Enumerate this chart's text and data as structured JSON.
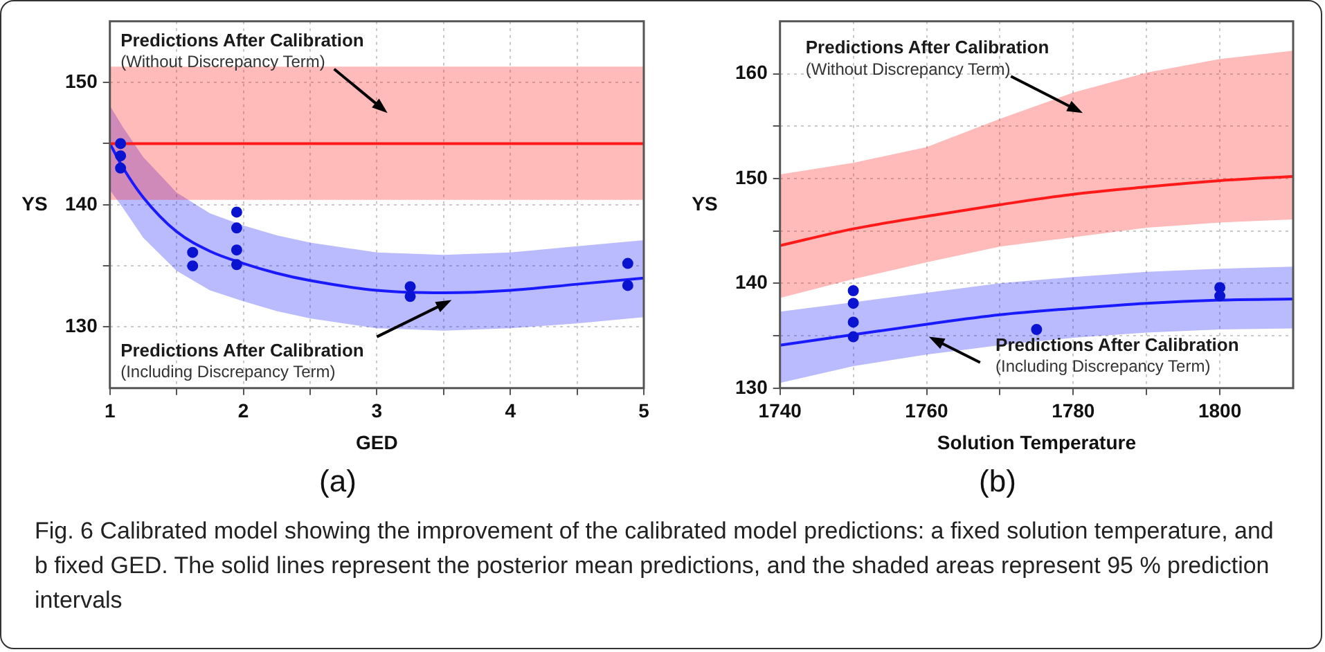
{
  "chart_data": [
    {
      "type": "line",
      "xlabel": "GED",
      "ylabel": "YS",
      "xlim": [
        1,
        5
      ],
      "ylim": [
        125,
        155
      ],
      "xticks": [
        1,
        {
          "value": 1.5,
          "label": null
        },
        2,
        {
          "value": 2.5,
          "label": null
        },
        3,
        {
          "value": 3.5,
          "label": null
        },
        4,
        {
          "value": 4.5,
          "label": null
        },
        5
      ],
      "yticks": [
        130,
        {
          "value": 135,
          "label": null
        },
        140,
        {
          "value": 145,
          "label": null
        },
        150
      ],
      "grid": true,
      "legend": false,
      "series": [
        {
          "type": "line",
          "color": "#ff1a1a",
          "x": [
            1,
            5
          ],
          "values": [
            145,
            145
          ],
          "lower": [
            140.4,
            140.4
          ],
          "upper": [
            151.3,
            151.3
          ]
        },
        {
          "type": "line",
          "color": "#1a1aff",
          "x": [
            1,
            1.1,
            1.25,
            1.5,
            1.75,
            2,
            2.25,
            2.5,
            3,
            3.5,
            4,
            4.5,
            5
          ],
          "values": [
            145,
            143,
            140.6,
            137.8,
            136.2,
            135.2,
            134.4,
            133.8,
            133,
            132.8,
            133,
            133.5,
            134
          ],
          "lower": [
            141.2,
            139.7,
            137.3,
            134.6,
            133,
            132.1,
            131.3,
            130.7,
            129.9,
            129.7,
            129.9,
            130.3,
            130.8
          ],
          "upper": [
            148.1,
            146.3,
            143.9,
            141,
            139.3,
            138.3,
            137.5,
            136.9,
            136.1,
            135.9,
            136.1,
            136.6,
            137.1
          ]
        },
        {
          "type": "scatter",
          "color": "#0a14d0",
          "marker": "circle",
          "x": [
            1.08,
            1.08,
            1.08,
            1.62,
            1.62,
            1.95,
            1.95,
            1.95,
            1.95,
            3.25,
            3.25,
            4.88,
            4.88
          ],
          "values": [
            145,
            144,
            143,
            136.1,
            135,
            139.4,
            138.1,
            136.3,
            135.1,
            133.3,
            132.5,
            135.2,
            133.4
          ]
        }
      ],
      "annotations": [
        "Predictions After Calibration",
        "(Without Discrepancy Term)",
        "Predictions After Calibration",
        "(Including Discrepancy Term)",
        "(a)"
      ]
    },
    {
      "type": "line",
      "xlabel": "Solution Temperature",
      "ylabel": "YS",
      "xlim": [
        1740,
        1810
      ],
      "ylim": [
        130,
        165
      ],
      "xticks": [
        1740,
        {
          "value": 1750,
          "label": null
        },
        1760,
        {
          "value": 1770,
          "label": null
        },
        1780,
        {
          "value": 1790,
          "label": null
        },
        1800
      ],
      "yticks": [
        130,
        {
          "value": 135,
          "label": null
        },
        140,
        {
          "value": 145,
          "label": null
        },
        150,
        {
          "value": 155,
          "label": null
        },
        160
      ],
      "grid": true,
      "legend": false,
      "series": [
        {
          "type": "line",
          "color": "#ff1a1a",
          "x": [
            1740,
            1750,
            1760,
            1770,
            1780,
            1790,
            1800,
            1810
          ],
          "values": [
            143.6,
            145.2,
            146.4,
            147.5,
            148.5,
            149.2,
            149.8,
            150.2
          ],
          "lower": [
            138.6,
            140.4,
            142,
            143.5,
            144.4,
            145.3,
            145.8,
            146.1
          ],
          "upper": [
            150.4,
            151.5,
            153,
            155.7,
            158.2,
            160.1,
            161.4,
            162.2
          ]
        },
        {
          "type": "line",
          "color": "#1a1aff",
          "x": [
            1740,
            1750,
            1760,
            1770,
            1780,
            1790,
            1800,
            1810
          ],
          "values": [
            134.1,
            135.1,
            136.1,
            137,
            137.6,
            138.1,
            138.4,
            138.5
          ],
          "lower": [
            130.5,
            132.1,
            133.2,
            134.1,
            134.8,
            135.3,
            135.6,
            135.7
          ],
          "upper": [
            137.3,
            138.2,
            139.1,
            140,
            140.6,
            141.1,
            141.4,
            141.6
          ]
        },
        {
          "type": "scatter",
          "color": "#0a14d0",
          "marker": "circle",
          "x": [
            1750,
            1750,
            1750,
            1750,
            1775,
            1800,
            1800
          ],
          "values": [
            139.3,
            138.1,
            136.3,
            134.9,
            135.6,
            139.6,
            138.8
          ]
        }
      ],
      "annotations": [
        "Predictions After Calibration",
        "(Without Discrepancy Term)",
        "Predictions After Calibration",
        "(Including Discrepancy Term)",
        "(b)",
        "Fig. 6 Calibrated model showing the improvement of the calibrated model predictions: a fixed solution temperature, and b fixed GED. The solid lines represent the posterior mean predictions, and the shaded areas represent 95 % prediction intervals"
      ]
    }
  ]
}
